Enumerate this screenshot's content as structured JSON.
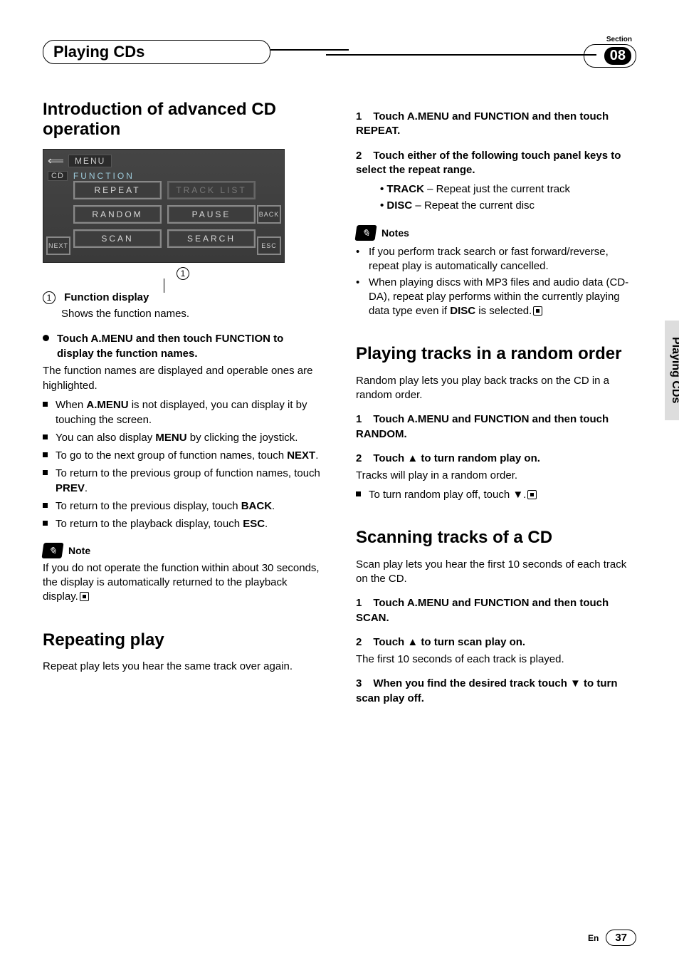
{
  "header": {
    "title": "Playing CDs",
    "section_label": "Section",
    "section_number": "08"
  },
  "side_tab": "Playing CDs",
  "footer": {
    "lang": "En",
    "page": "37"
  },
  "display": {
    "menu": "MENU",
    "source": "CD",
    "function": "FUNCTION",
    "buttons": {
      "repeat": "REPEAT",
      "tracklist": "TRACK LIST",
      "random": "RANDOM",
      "pause": "PAUSE",
      "scan": "SCAN",
      "search": "SEARCH"
    },
    "side": {
      "next": "NEXT",
      "back": "BACK",
      "esc": "ESC"
    },
    "callout": "1"
  },
  "left": {
    "h2": "Introduction of advanced CD operation",
    "func_num": "1",
    "func_title": "Function display",
    "func_desc": "Shows the function names.",
    "lead": "Touch A.MENU and then touch FUNCTION to display the function names.",
    "lead_body": "The function names are displayed and operable ones are highlighted.",
    "bullets": [
      "When <b>A.MENU</b> is not displayed, you can display it by touching the screen.",
      "You can also display <b>MENU</b> by clicking the joystick.",
      "To go to the next group of function names, touch <b>NEXT</b>.",
      "To return to the previous group of function names, touch <b>PREV</b>.",
      "To return to the previous display, touch <b>BACK</b>.",
      "To return to the playback display, touch <b>ESC</b>."
    ],
    "note_title": "Note",
    "note_body": "If you do not operate the function within about 30 seconds, the display is automatically returned to the playback display.",
    "repeat_h2": "Repeating play",
    "repeat_body": "Repeat play lets you hear the same track over again."
  },
  "right": {
    "repeat_steps": {
      "s1": "Touch A.MENU and FUNCTION and then touch REPEAT.",
      "s2": "Touch either of the following touch panel keys to select the repeat range.",
      "options": [
        {
          "label": "TRACK",
          "desc": "Repeat just the current track"
        },
        {
          "label": "DISC",
          "desc": "Repeat the current disc"
        }
      ]
    },
    "notes_title": "Notes",
    "notes": [
      "If you perform track search or fast forward/reverse, repeat play is automatically cancelled.",
      "When playing discs with MP3 files and audio data (CD-DA), repeat play performs within the currently playing data type even if <b>DISC</b> is selected."
    ],
    "random_h2": "Playing tracks in a random order",
    "random_body": "Random play lets you play back tracks on the CD in a random order.",
    "random_s1": "Touch A.MENU and FUNCTION and then touch RANDOM.",
    "random_s2": "Touch ▲ to turn random play on.",
    "random_s2_body": "Tracks will play in a random order.",
    "random_bullet": "To turn random play off, touch ▼.",
    "scan_h2": "Scanning tracks of a CD",
    "scan_body": "Scan play lets you hear the first 10 seconds of each track on the CD.",
    "scan_s1": "Touch A.MENU and FUNCTION and then touch SCAN.",
    "scan_s2": "Touch ▲ to turn scan play on.",
    "scan_s2_body": "The first 10 seconds of each track is played.",
    "scan_s3": "When you find the desired track touch ▼ to turn scan play off."
  }
}
